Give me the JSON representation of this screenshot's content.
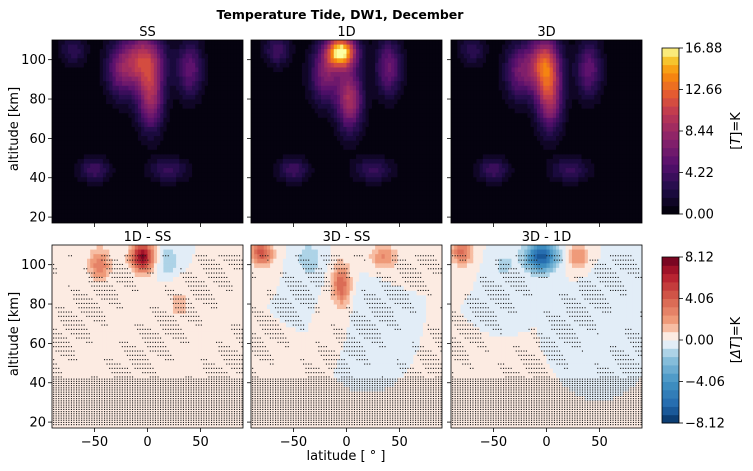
{
  "title": "Temperature Tide, DW1, December",
  "xlabel": "latitude [$^\\circ$]",
  "xlabel_display": "latitude [ ° ]",
  "ylabel": "altitude [km]",
  "chart_data": [
    {
      "type": "heatmap",
      "title": "SS",
      "row": "top",
      "xlim": [
        -90,
        90
      ],
      "ylim": [
        17,
        110
      ],
      "xticks": [
        -50,
        0,
        50
      ],
      "yticks": [
        20,
        40,
        60,
        80,
        100
      ],
      "colormap": "inferno",
      "blobs": [
        {
          "lat": -3,
          "alt": 100,
          "amp": 9.5,
          "w": 18,
          "h": 14
        },
        {
          "lat": 3,
          "alt": 80,
          "amp": 8.0,
          "w": 12,
          "h": 16
        },
        {
          "lat": -25,
          "alt": 95,
          "amp": 6.0,
          "w": 14,
          "h": 14
        },
        {
          "lat": 40,
          "alt": 95,
          "amp": 5.5,
          "w": 12,
          "h": 14
        },
        {
          "lat": -50,
          "alt": 44,
          "amp": 4.0,
          "w": 14,
          "h": 6
        },
        {
          "lat": 20,
          "alt": 44,
          "amp": 3.5,
          "w": 18,
          "h": 6
        },
        {
          "lat": -70,
          "alt": 105,
          "amp": 3.0,
          "w": 12,
          "h": 8
        }
      ]
    },
    {
      "type": "heatmap",
      "title": "1D",
      "row": "top",
      "xlim": [
        -90,
        90
      ],
      "ylim": [
        17,
        110
      ],
      "xticks": [
        -50,
        0,
        50
      ],
      "yticks": [
        20,
        40,
        60,
        80,
        100
      ],
      "colormap": "inferno",
      "blobs": [
        {
          "lat": -5,
          "alt": 104,
          "amp": 16.5,
          "w": 14,
          "h": 8
        },
        {
          "lat": 3,
          "alt": 80,
          "amp": 9.0,
          "w": 12,
          "h": 16
        },
        {
          "lat": -20,
          "alt": 92,
          "amp": 6.5,
          "w": 14,
          "h": 14
        },
        {
          "lat": 40,
          "alt": 96,
          "amp": 6.0,
          "w": 12,
          "h": 14
        },
        {
          "lat": -50,
          "alt": 44,
          "amp": 4.0,
          "w": 14,
          "h": 6
        },
        {
          "lat": 25,
          "alt": 44,
          "amp": 3.5,
          "w": 18,
          "h": 6
        },
        {
          "lat": -65,
          "alt": 105,
          "amp": 4.0,
          "w": 12,
          "h": 8
        }
      ]
    },
    {
      "type": "heatmap",
      "title": "3D",
      "row": "top",
      "xlim": [
        -90,
        90
      ],
      "ylim": [
        17,
        110
      ],
      "xticks": [
        -50,
        0,
        50
      ],
      "yticks": [
        20,
        40,
        60,
        80,
        100
      ],
      "colormap": "inferno",
      "blobs": [
        {
          "lat": -2,
          "alt": 98,
          "amp": 11.0,
          "w": 14,
          "h": 14
        },
        {
          "lat": 3,
          "alt": 80,
          "amp": 8.5,
          "w": 12,
          "h": 16
        },
        {
          "lat": -25,
          "alt": 94,
          "amp": 6.0,
          "w": 14,
          "h": 14
        },
        {
          "lat": 40,
          "alt": 95,
          "amp": 5.5,
          "w": 12,
          "h": 14
        },
        {
          "lat": -50,
          "alt": 44,
          "amp": 4.0,
          "w": 14,
          "h": 6
        },
        {
          "lat": 22,
          "alt": 44,
          "amp": 3.5,
          "w": 18,
          "h": 6
        },
        {
          "lat": -70,
          "alt": 105,
          "amp": 3.0,
          "w": 12,
          "h": 8
        }
      ]
    },
    {
      "type": "heatmap",
      "title": "1D - SS",
      "row": "bottom",
      "xlim": [
        -90,
        90
      ],
      "ylim": [
        17,
        110
      ],
      "xticks": [
        -50,
        0,
        50
      ],
      "yticks": [
        20,
        40,
        60,
        80,
        100
      ],
      "colormap": "RdBu_r",
      "stippled": true,
      "blobs": [
        {
          "lat": -5,
          "alt": 104,
          "amp": 7.5,
          "w": 10,
          "h": 7
        },
        {
          "lat": -45,
          "alt": 100,
          "amp": 3.0,
          "w": 10,
          "h": 8
        },
        {
          "lat": 20,
          "alt": 102,
          "amp": -1.5,
          "w": 10,
          "h": 8
        },
        {
          "lat": 30,
          "alt": 80,
          "amp": 1.0,
          "w": 14,
          "h": 12
        },
        {
          "lat": -70,
          "alt": 65,
          "amp": 0.8,
          "w": 14,
          "h": 20
        }
      ]
    },
    {
      "type": "heatmap",
      "title": "3D - SS",
      "row": "bottom",
      "xlim": [
        -90,
        90
      ],
      "ylim": [
        17,
        110
      ],
      "xticks": [
        -50,
        0,
        50
      ],
      "yticks": [
        20,
        40,
        60,
        80,
        100
      ],
      "colormap": "RdBu_r",
      "stippled": true,
      "blobs": [
        {
          "lat": -80,
          "alt": 106,
          "amp": 4.5,
          "w": 10,
          "h": 6
        },
        {
          "lat": -5,
          "alt": 90,
          "amp": 4.0,
          "w": 8,
          "h": 10
        },
        {
          "lat": -35,
          "alt": 103,
          "amp": -1.5,
          "w": 12,
          "h": 8
        },
        {
          "lat": 35,
          "alt": 104,
          "amp": 2.5,
          "w": 12,
          "h": 6
        },
        {
          "lat": 20,
          "alt": 80,
          "amp": -0.8,
          "w": 12,
          "h": 10
        }
      ]
    },
    {
      "type": "heatmap",
      "title": "3D - 1D",
      "row": "bottom",
      "xlim": [
        -90,
        90
      ],
      "ylim": [
        17,
        110
      ],
      "xticks": [
        -50,
        0,
        50
      ],
      "yticks": [
        20,
        40,
        60,
        80,
        100
      ],
      "colormap": "RdBu_r",
      "stippled": true,
      "blobs": [
        {
          "lat": -5,
          "alt": 104,
          "amp": -7.0,
          "w": 14,
          "h": 7
        },
        {
          "lat": -80,
          "alt": 106,
          "amp": 3.5,
          "w": 10,
          "h": 6
        },
        {
          "lat": 30,
          "alt": 104,
          "amp": 2.5,
          "w": 10,
          "h": 6
        },
        {
          "lat": -40,
          "alt": 100,
          "amp": -1.0,
          "w": 12,
          "h": 8
        },
        {
          "lat": 50,
          "alt": 85,
          "amp": -0.6,
          "w": 14,
          "h": 12
        }
      ]
    }
  ],
  "colorbars": [
    {
      "label": "[T]=K",
      "label_parts": [
        "[",
        "T",
        "]=K"
      ],
      "colormap": "inferno",
      "vmin": 0.0,
      "vmax": 16.88,
      "ticks": [
        "16.88",
        "12.66",
        "8.44",
        "4.22",
        "0.00"
      ],
      "tick_values": [
        16.88,
        12.66,
        8.44,
        4.22,
        0.0
      ]
    },
    {
      "label": "[ΔT]=K",
      "label_parts": [
        "[",
        "ΔT",
        "]=K"
      ],
      "colormap": "RdBu_r",
      "vmin": -8.12,
      "vmax": 8.12,
      "ticks": [
        "8.12",
        "4.06",
        "0.00",
        "−4.06",
        "−8.12"
      ],
      "tick_values": [
        8.12,
        4.06,
        0.0,
        -4.06,
        -8.12
      ]
    }
  ]
}
